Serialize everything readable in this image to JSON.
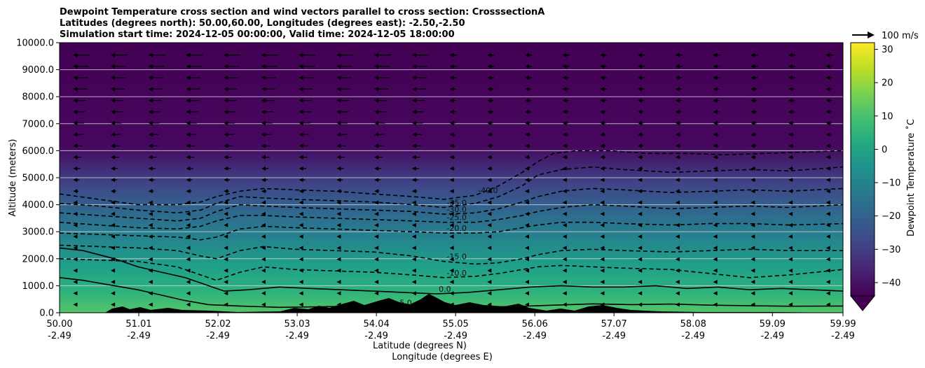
{
  "chart_data": {
    "type": "heatmap",
    "title_lines": [
      "Dewpoint Temperature cross section and wind vectors parallel to cross section: CrosssectionA",
      "Latitudes (degrees north): 50.00,60.00, Longitudes (degrees east): -2.50,-2.50",
      "Simulation start time: 2024-12-05 00:00:00, Valid time: 2024-12-05 18:00:00"
    ],
    "xlabel": "Latitude (degrees N)",
    "xlabel2": "Longitude (degrees E)",
    "ylabel": "Altitude (meters)",
    "xlim": [
      50.0,
      59.99
    ],
    "ylim": [
      0,
      10000
    ],
    "x_ticks": [
      {
        "lat": "50.00",
        "lon": "-2.49",
        "value": 50.0
      },
      {
        "lat": "51.01",
        "lon": "-2.49",
        "value": 51.01
      },
      {
        "lat": "52.02",
        "lon": "-2.49",
        "value": 52.02
      },
      {
        "lat": "53.03",
        "lon": "-2.49",
        "value": 53.03
      },
      {
        "lat": "54.04",
        "lon": "-2.49",
        "value": 54.04
      },
      {
        "lat": "55.05",
        "lon": "-2.49",
        "value": 55.05
      },
      {
        "lat": "56.06",
        "lon": "-2.49",
        "value": 56.06
      },
      {
        "lat": "57.07",
        "lon": "-2.49",
        "value": 57.07
      },
      {
        "lat": "58.08",
        "lon": "-2.49",
        "value": 58.08
      },
      {
        "lat": "59.09",
        "lon": "-2.49",
        "value": 59.09
      },
      {
        "lat": "59.99",
        "lon": "-2.49",
        "value": 59.99
      }
    ],
    "y_ticks": [
      {
        "label": "0.0",
        "value": 0
      },
      {
        "label": "1000.0",
        "value": 1000
      },
      {
        "label": "2000.0",
        "value": 2000
      },
      {
        "label": "3000.0",
        "value": 3000
      },
      {
        "label": "4000.0",
        "value": 4000
      },
      {
        "label": "5000.0",
        "value": 5000
      },
      {
        "label": "6000.0",
        "value": 6000
      },
      {
        "label": "7000.0",
        "value": 7000
      },
      {
        "label": "8000.0",
        "value": 8000
      },
      {
        "label": "9000.0",
        "value": 9000
      },
      {
        "label": "10000.0",
        "value": 10000
      }
    ],
    "grid": "horizontal",
    "colorbar": {
      "label": "Dewpoint Temperature ˚C",
      "min": -44,
      "max": 32,
      "extend": "min",
      "ticks": [
        {
          "label": "30",
          "value": 30
        },
        {
          "label": "20",
          "value": 20
        },
        {
          "label": "10",
          "value": 10
        },
        {
          "label": "0",
          "value": 0
        },
        {
          "label": "−10",
          "value": -10
        },
        {
          "label": "−20",
          "value": -20
        },
        {
          "label": "−30",
          "value": -30
        },
        {
          "label": "−40",
          "value": -40
        }
      ],
      "colors": [
        "#440154",
        "#482374",
        "#404387",
        "#345e8d",
        "#29788e",
        "#20908c",
        "#22a884",
        "#43be71",
        "#7ad151",
        "#bddf26",
        "#fde725"
      ]
    },
    "quiver_key": {
      "label": "100 m/s"
    },
    "contour_levels": [
      {
        "value": -40,
        "style": "dashed",
        "points": [
          [
            50.0,
            4400
          ],
          [
            50.5,
            4200
          ],
          [
            51.0,
            4000
          ],
          [
            51.5,
            4000
          ],
          [
            51.8,
            4100
          ],
          [
            52.0,
            4300
          ],
          [
            52.3,
            4500
          ],
          [
            52.6,
            4600
          ],
          [
            53.0,
            4550
          ],
          [
            53.5,
            4500
          ],
          [
            54.0,
            4400
          ],
          [
            54.5,
            4300
          ],
          [
            54.9,
            4200
          ],
          [
            55.3,
            4350
          ],
          [
            55.6,
            4700
          ],
          [
            55.9,
            5200
          ],
          [
            56.1,
            5600
          ],
          [
            56.3,
            5900
          ],
          [
            56.6,
            6000
          ],
          [
            57.0,
            6000
          ],
          [
            57.5,
            5900
          ],
          [
            58.0,
            5900
          ],
          [
            58.5,
            5850
          ],
          [
            59.0,
            5900
          ],
          [
            59.5,
            5950
          ],
          [
            59.99,
            6000
          ]
        ]
      },
      {
        "value": -35,
        "style": "dashed",
        "points": [
          [
            50.0,
            4050
          ],
          [
            50.5,
            3950
          ],
          [
            51.0,
            3800
          ],
          [
            51.5,
            3700
          ],
          [
            51.8,
            3800
          ],
          [
            52.0,
            4050
          ],
          [
            52.3,
            4300
          ],
          [
            52.6,
            4250
          ],
          [
            53.0,
            4200
          ],
          [
            53.5,
            4150
          ],
          [
            54.0,
            4100
          ],
          [
            54.5,
            4000
          ],
          [
            54.9,
            3900
          ],
          [
            55.3,
            4050
          ],
          [
            55.6,
            4300
          ],
          [
            55.9,
            4700
          ],
          [
            56.1,
            5100
          ],
          [
            56.4,
            5300
          ],
          [
            56.8,
            5400
          ],
          [
            57.2,
            5300
          ],
          [
            57.8,
            5200
          ],
          [
            58.3,
            5250
          ],
          [
            58.8,
            5300
          ],
          [
            59.3,
            5250
          ],
          [
            59.99,
            5400
          ]
        ]
      },
      {
        "value": -30,
        "style": "dashed",
        "points": [
          [
            50.0,
            3700
          ],
          [
            50.5,
            3600
          ],
          [
            51.0,
            3500
          ],
          [
            51.5,
            3400
          ],
          [
            51.8,
            3500
          ],
          [
            52.0,
            3750
          ],
          [
            52.3,
            4000
          ],
          [
            52.6,
            3950
          ],
          [
            53.0,
            3900
          ],
          [
            53.5,
            3850
          ],
          [
            54.0,
            3800
          ],
          [
            54.5,
            3750
          ],
          [
            54.9,
            3650
          ],
          [
            55.3,
            3700
          ],
          [
            55.6,
            3850
          ],
          [
            55.9,
            4100
          ],
          [
            56.1,
            4300
          ],
          [
            56.4,
            4500
          ],
          [
            56.8,
            4600
          ],
          [
            57.2,
            4550
          ],
          [
            57.8,
            4450
          ],
          [
            58.3,
            4500
          ],
          [
            58.8,
            4550
          ],
          [
            59.3,
            4500
          ],
          [
            59.99,
            4600
          ]
        ]
      },
      {
        "value": -25,
        "style": "dashed",
        "points": [
          [
            50.0,
            3350
          ],
          [
            50.5,
            3250
          ],
          [
            51.0,
            3150
          ],
          [
            51.5,
            3100
          ],
          [
            51.8,
            3200
          ],
          [
            52.0,
            3400
          ],
          [
            52.3,
            3600
          ],
          [
            52.6,
            3600
          ],
          [
            53.0,
            3550
          ],
          [
            53.5,
            3500
          ],
          [
            54.0,
            3450
          ],
          [
            54.5,
            3400
          ],
          [
            54.9,
            3350
          ],
          [
            55.3,
            3350
          ],
          [
            55.6,
            3450
          ],
          [
            55.9,
            3600
          ],
          [
            56.1,
            3750
          ],
          [
            56.4,
            3900
          ],
          [
            56.8,
            4000
          ],
          [
            57.2,
            3950
          ],
          [
            57.8,
            3850
          ],
          [
            58.3,
            3900
          ],
          [
            58.8,
            3950
          ],
          [
            59.3,
            3900
          ],
          [
            59.99,
            4000
          ]
        ]
      },
      {
        "value": -20,
        "style": "dashed",
        "points": [
          [
            50.0,
            2950
          ],
          [
            50.5,
            2900
          ],
          [
            51.0,
            2850
          ],
          [
            51.5,
            2800
          ],
          [
            51.8,
            2700
          ],
          [
            52.0,
            2800
          ],
          [
            52.3,
            3100
          ],
          [
            52.6,
            3200
          ],
          [
            53.0,
            3150
          ],
          [
            53.5,
            3100
          ],
          [
            54.0,
            3050
          ],
          [
            54.5,
            3000
          ],
          [
            54.9,
            2950
          ],
          [
            55.3,
            2950
          ],
          [
            55.6,
            3000
          ],
          [
            55.9,
            3150
          ],
          [
            56.1,
            3250
          ],
          [
            56.4,
            3350
          ],
          [
            56.8,
            3350
          ],
          [
            57.2,
            3300
          ],
          [
            57.8,
            3250
          ],
          [
            58.3,
            3300
          ],
          [
            58.8,
            3300
          ],
          [
            59.3,
            3250
          ],
          [
            59.99,
            3300
          ]
        ]
      },
      {
        "value": -15,
        "style": "dashed",
        "points": [
          [
            50.0,
            2500
          ],
          [
            50.5,
            2450
          ],
          [
            51.0,
            2400
          ],
          [
            51.5,
            2300
          ],
          [
            51.8,
            2100
          ],
          [
            52.0,
            2000
          ],
          [
            52.3,
            2300
          ],
          [
            52.6,
            2450
          ],
          [
            53.0,
            2350
          ],
          [
            53.5,
            2300
          ],
          [
            54.0,
            2250
          ],
          [
            54.5,
            2100
          ],
          [
            54.9,
            1900
          ],
          [
            55.3,
            1800
          ],
          [
            55.6,
            1850
          ],
          [
            55.9,
            2000
          ],
          [
            56.1,
            2150
          ],
          [
            56.4,
            2300
          ],
          [
            56.8,
            2350
          ],
          [
            57.2,
            2300
          ],
          [
            57.8,
            2250
          ],
          [
            58.3,
            2300
          ],
          [
            58.8,
            2350
          ],
          [
            59.3,
            2300
          ],
          [
            59.99,
            2300
          ]
        ]
      },
      {
        "value": -10,
        "style": "dashed",
        "points": [
          [
            50.0,
            2000
          ],
          [
            50.5,
            1950
          ],
          [
            51.0,
            1900
          ],
          [
            51.5,
            1700
          ],
          [
            51.8,
            1400
          ],
          [
            52.0,
            1200
          ],
          [
            52.3,
            1500
          ],
          [
            52.6,
            1700
          ],
          [
            53.0,
            1600
          ],
          [
            53.5,
            1550
          ],
          [
            54.0,
            1500
          ],
          [
            54.5,
            1400
          ],
          [
            54.9,
            1300
          ],
          [
            55.3,
            1350
          ],
          [
            55.6,
            1450
          ],
          [
            55.9,
            1600
          ],
          [
            56.1,
            1700
          ],
          [
            56.4,
            1750
          ],
          [
            56.8,
            1700
          ],
          [
            57.2,
            1650
          ],
          [
            57.8,
            1600
          ],
          [
            58.3,
            1450
          ],
          [
            58.8,
            1300
          ],
          [
            59.3,
            1400
          ],
          [
            59.99,
            1600
          ]
        ]
      },
      {
        "value": 0,
        "style": "solid",
        "points": [
          [
            50.0,
            2400
          ],
          [
            50.3,
            2300
          ],
          [
            50.7,
            2000
          ],
          [
            51.0,
            1700
          ],
          [
            51.3,
            1500
          ],
          [
            51.6,
            1300
          ],
          [
            51.9,
            1000
          ],
          [
            52.1,
            800
          ],
          [
            52.4,
            850
          ],
          [
            52.8,
            950
          ],
          [
            53.2,
            900
          ],
          [
            53.6,
            850
          ],
          [
            54.0,
            800
          ],
          [
            54.4,
            750
          ],
          [
            54.8,
            700
          ],
          [
            55.2,
            750
          ],
          [
            55.6,
            850
          ],
          [
            56.0,
            950
          ],
          [
            56.4,
            1000
          ],
          [
            56.8,
            950
          ],
          [
            57.2,
            950
          ],
          [
            57.6,
            1000
          ],
          [
            58.0,
            900
          ],
          [
            58.4,
            950
          ],
          [
            58.8,
            850
          ],
          [
            59.2,
            900
          ],
          [
            59.6,
            850
          ],
          [
            59.99,
            800
          ]
        ]
      },
      {
        "value": 5,
        "style": "solid",
        "points": [
          [
            50.0,
            1300
          ],
          [
            50.3,
            1200
          ],
          [
            50.7,
            1000
          ],
          [
            51.0,
            850
          ],
          [
            51.3,
            650
          ],
          [
            51.6,
            450
          ],
          [
            51.9,
            300
          ],
          [
            52.3,
            250
          ],
          [
            52.8,
            200
          ],
          [
            53.3,
            220
          ],
          [
            53.8,
            250
          ],
          [
            54.3,
            200
          ],
          [
            54.8,
            220
          ],
          [
            55.3,
            200
          ],
          [
            55.8,
            230
          ],
          [
            56.3,
            280
          ],
          [
            56.8,
            330
          ],
          [
            57.3,
            300
          ],
          [
            57.8,
            320
          ],
          [
            58.3,
            280
          ],
          [
            58.8,
            260
          ],
          [
            59.3,
            240
          ],
          [
            59.99,
            250
          ]
        ]
      }
    ]
  }
}
